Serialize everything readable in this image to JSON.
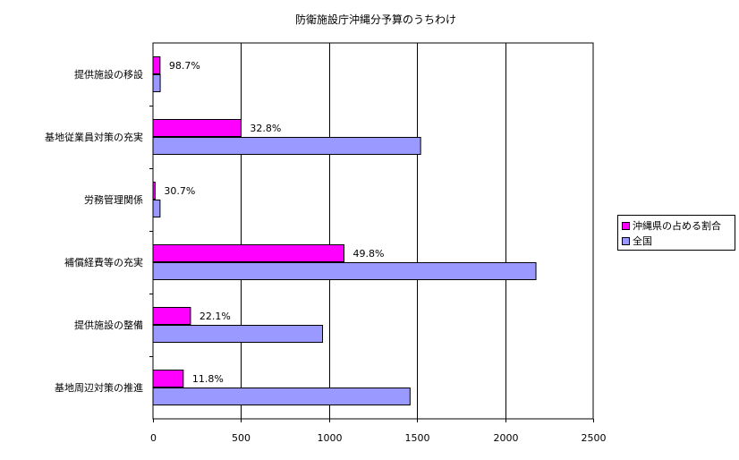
{
  "chart_data": {
    "type": "bar",
    "orientation": "horizontal",
    "title": "防衛施設庁沖縄分予算のうちわけ",
    "xlabel": "",
    "ylabel": "",
    "xlim": [
      0,
      2500
    ],
    "x_ticks": [
      "0",
      "500",
      "1000",
      "1500",
      "2000",
      "2500"
    ],
    "grid": "vertical",
    "legend_position": "right",
    "categories": [
      "提供施設の移設",
      "基地従業員対策の充実",
      "労務管理関係",
      "補償経費等の充実",
      "提供施設の整備",
      "基地周辺対策の推進"
    ],
    "series": [
      {
        "name": "沖縄県の占める割合",
        "color": "#FF00FF",
        "values": [
          40,
          500,
          12,
          1085,
          213,
          172
        ]
      },
      {
        "name": "全国",
        "color": "#9999FF",
        "values": [
          41,
          1520,
          40,
          2175,
          963,
          1460
        ]
      }
    ],
    "data_labels": [
      "98.7%",
      "32.8%",
      "30.7%",
      "49.8%",
      "22.1%",
      "11.8%"
    ]
  }
}
